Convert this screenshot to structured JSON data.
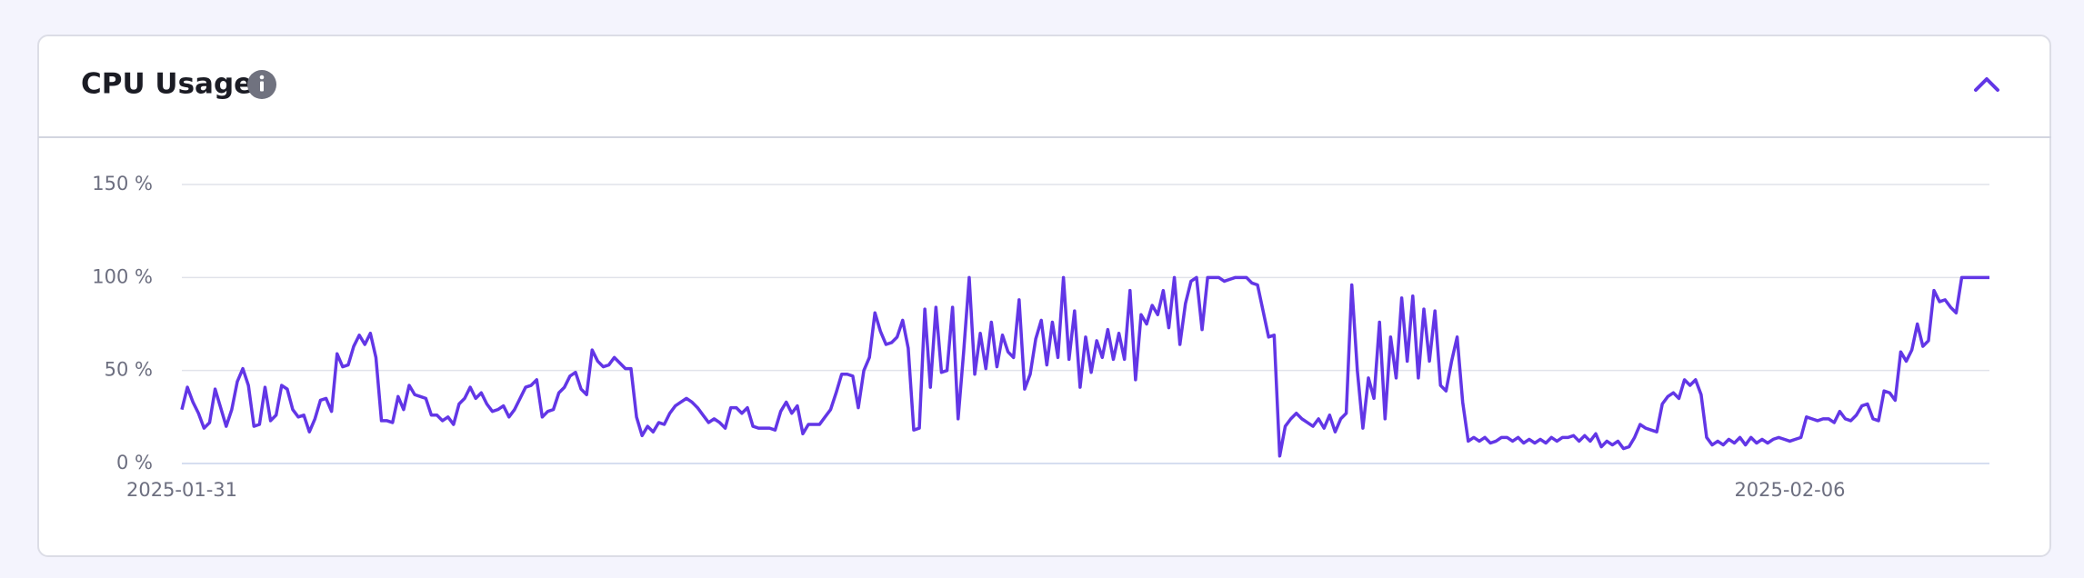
{
  "chart_data": {
    "type": "line",
    "title": "CPU Usage",
    "categories": [
      "2025-01-31",
      null,
      null,
      null,
      null,
      null,
      null,
      null,
      null,
      null,
      null,
      null,
      null,
      null,
      null,
      null,
      null,
      null,
      null,
      null,
      null,
      null,
      null,
      null,
      null,
      null,
      null,
      null,
      null,
      null,
      null,
      null,
      null,
      null,
      null,
      null,
      null,
      null,
      null,
      null,
      null,
      null,
      null,
      null,
      null,
      null,
      null,
      null,
      null,
      null,
      null,
      null,
      null,
      null,
      null,
      null,
      null,
      null,
      null,
      null,
      null,
      null,
      null,
      null,
      null,
      null,
      null,
      null,
      null,
      null,
      null,
      null,
      null,
      null,
      null,
      null,
      null,
      null,
      null,
      null,
      null,
      null,
      null,
      null,
      null,
      null,
      null,
      null,
      null,
      null,
      null,
      null,
      null,
      null,
      null,
      null,
      null,
      null,
      null,
      null,
      null,
      null,
      null,
      null,
      null,
      null,
      null,
      null,
      null,
      null,
      null,
      null,
      null,
      null,
      null,
      null,
      null,
      null,
      null,
      null,
      null,
      null,
      null,
      null,
      null,
      null,
      null,
      null,
      null,
      null,
      null,
      null,
      null,
      null,
      null,
      null,
      null,
      null,
      null,
      null,
      null,
      null,
      null,
      null,
      null,
      null,
      null,
      null,
      null,
      null,
      null,
      null,
      null,
      null,
      null,
      null,
      null,
      null,
      null,
      null,
      null,
      null,
      null,
      null,
      null,
      null,
      null,
      null,
      null,
      null,
      null,
      null,
      null,
      null,
      null,
      null,
      null,
      null,
      null,
      null,
      null,
      null,
      null,
      null,
      null,
      null,
      null,
      null,
      null,
      null,
      null,
      null,
      null,
      null,
      null,
      null,
      null,
      null,
      null,
      null,
      null,
      null,
      null,
      null,
      null,
      null,
      null,
      null,
      null,
      null,
      null,
      null,
      null,
      null,
      null,
      null,
      null,
      null,
      null,
      null,
      null,
      null,
      null,
      null,
      null,
      null,
      null,
      null,
      null,
      null,
      null,
      null,
      null,
      null,
      null,
      null,
      null,
      null,
      null,
      null,
      null,
      null,
      null,
      null,
      null,
      null,
      null,
      null,
      null,
      null,
      null,
      null,
      null,
      null,
      null,
      null,
      null,
      null,
      null,
      null,
      null,
      null,
      null,
      null,
      null,
      null,
      null,
      null,
      null,
      null,
      null,
      null,
      null,
      null,
      null,
      null,
      null,
      null,
      null,
      null,
      null,
      null,
      null,
      null,
      null,
      null,
      null,
      null,
      null,
      null,
      "2025-02-06",
      null,
      null,
      null,
      null,
      null,
      null,
      null,
      null,
      null,
      null,
      null,
      null,
      null,
      null,
      null,
      null,
      null,
      null,
      null,
      null,
      null,
      null,
      null,
      null,
      null,
      null,
      null,
      null,
      null,
      null,
      null,
      null,
      null,
      null,
      null,
      null
    ],
    "series": [
      {
        "name": "CPU",
        "color": "#6236e6",
        "values": [
          29,
          41,
          33,
          27,
          19,
          22,
          40,
          30,
          20,
          29,
          44,
          51,
          42,
          20,
          21,
          41,
          23,
          26,
          42,
          40,
          29,
          25,
          26,
          17,
          24,
          34,
          35,
          28,
          59,
          52,
          53,
          63,
          69,
          64,
          70,
          57,
          23,
          23,
          22,
          36,
          29,
          42,
          37,
          36,
          35,
          26,
          26,
          23,
          25,
          21,
          32,
          35,
          41,
          35,
          38,
          32,
          28,
          29,
          31,
          25,
          29,
          35,
          41,
          42,
          45,
          25,
          28,
          29,
          38,
          41,
          47,
          49,
          40,
          37,
          61,
          55,
          52,
          53,
          57,
          54,
          51,
          51,
          25,
          15,
          20,
          17,
          22,
          21,
          27,
          31,
          33,
          35,
          33,
          30,
          26,
          22,
          24,
          22,
          19,
          30,
          30,
          27,
          30,
          20,
          19,
          19,
          19,
          18,
          28,
          33,
          27,
          31,
          16,
          21,
          21,
          21,
          25,
          29,
          38,
          48,
          48,
          47,
          30,
          50,
          57,
          81,
          71,
          64,
          65,
          68,
          77,
          62,
          18,
          19,
          83,
          41,
          84,
          49,
          50,
          84,
          24,
          60,
          100,
          48,
          70,
          51,
          76,
          52,
          69,
          60,
          57,
          88,
          40,
          48,
          67,
          77,
          53,
          76,
          57,
          100,
          56,
          82,
          41,
          68,
          49,
          66,
          57,
          72,
          56,
          70,
          56,
          93,
          45,
          80,
          75,
          85,
          80,
          93,
          73,
          100,
          64,
          86,
          98,
          100,
          72,
          100,
          100,
          100,
          98,
          99,
          100,
          100,
          100,
          97,
          96,
          82,
          68,
          69,
          4,
          20,
          24,
          27,
          24,
          22,
          20,
          24,
          19,
          26,
          17,
          24,
          27,
          96,
          50,
          19,
          46,
          35,
          76,
          24,
          68,
          46,
          89,
          55,
          90,
          46,
          83,
          55,
          82,
          42,
          39,
          55,
          68,
          33,
          12,
          14,
          12,
          14,
          11,
          12,
          14,
          14,
          12,
          14,
          11,
          13,
          11,
          13,
          11,
          14,
          12,
          14,
          14,
          15,
          12,
          15,
          12,
          16,
          9,
          12,
          10,
          12,
          8,
          9,
          14,
          21,
          19,
          18,
          17,
          32,
          36,
          38,
          35,
          45,
          42,
          45,
          37,
          14,
          10,
          12,
          10,
          13,
          11,
          14,
          10,
          14,
          11,
          13,
          11,
          13,
          14,
          13,
          12,
          13,
          14,
          25,
          24,
          23,
          24,
          24,
          22,
          28,
          24,
          23,
          26,
          31,
          32,
          24,
          23,
          39,
          38,
          34,
          60,
          55,
          61,
          75,
          63,
          66,
          93,
          87,
          88,
          84,
          81,
          100,
          100,
          100,
          100,
          100,
          100
        ]
      }
    ],
    "ylim": [
      0,
      150
    ],
    "yticks": [
      {
        "value": 0,
        "label": "0 %"
      },
      {
        "value": 50,
        "label": "50 %"
      },
      {
        "value": 100,
        "label": "100 %"
      },
      {
        "value": 150,
        "label": "150 %"
      }
    ],
    "grid": true
  }
}
